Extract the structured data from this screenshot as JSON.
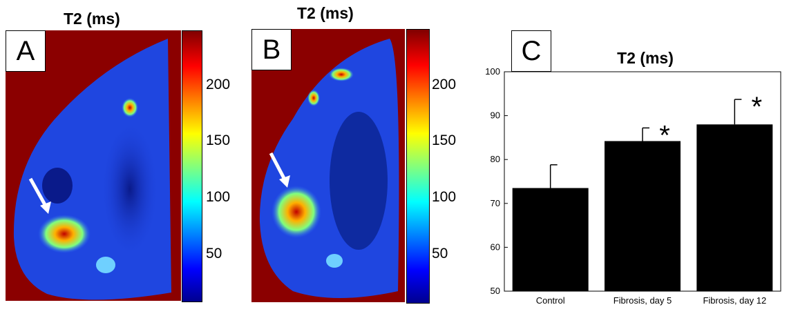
{
  "panels": {
    "a": {
      "title": "T2 (ms)",
      "letter": "A"
    },
    "b": {
      "title": "T2 (ms)",
      "letter": "B"
    },
    "c": {
      "letter": "C"
    }
  },
  "colorbar": {
    "ticks": [
      "200",
      "150",
      "100",
      "50"
    ]
  },
  "colors": {
    "bar": "#000000",
    "background": "#8b0000",
    "arrow": "#ffffff"
  },
  "chart_data": {
    "type": "bar",
    "title": "T2 (ms)",
    "categories": [
      "Control",
      "Fibrosis, day 5",
      "Fibrosis, day 12"
    ],
    "values": [
      73.5,
      84.2,
      88.0
    ],
    "error": [
      5.3,
      3.0,
      5.7
    ],
    "significance": [
      "",
      "*",
      "*"
    ],
    "ylim": [
      50,
      100
    ],
    "yticks": [
      50,
      60,
      70,
      80,
      90,
      100
    ],
    "xlabel": "",
    "ylabel": "",
    "grid": false
  }
}
